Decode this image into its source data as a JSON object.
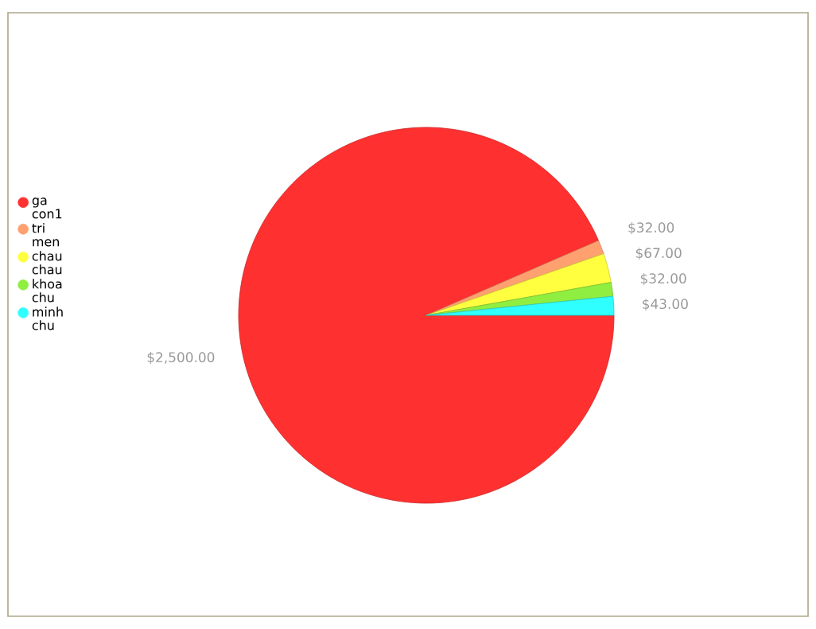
{
  "chart_data": {
    "type": "pie",
    "categories": [
      "ga con1",
      "tri men",
      "chau chau",
      "khoa chu",
      "minh chu"
    ],
    "values": [
      2500,
      32,
      67,
      32,
      43
    ],
    "colors": [
      "#ff3030",
      "#ffa070",
      "#ffff40",
      "#90ee40",
      "#30ffff"
    ],
    "value_labels": [
      "$2,500.00",
      "$32.00",
      "$67.00",
      "$32.00",
      "$43.00"
    ],
    "legend": "left"
  }
}
